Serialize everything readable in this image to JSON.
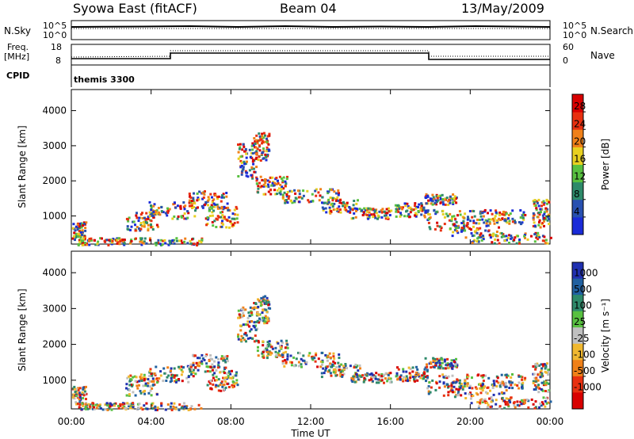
{
  "header": {
    "station": "Syowa East (fitACF)",
    "beam": "Beam 04",
    "date": "13/May/2009"
  },
  "top_panels": {
    "nsky_label": "N.Sky",
    "nsky_ticks": [
      "10^5",
      "10^0"
    ],
    "nsearch_label": "N.Search",
    "nsearch_ticks": [
      "10^5",
      "10^0"
    ],
    "freq_label_1": "Freq.",
    "freq_label_2": "[MHz]",
    "freq_ticks": [
      "18",
      "8"
    ],
    "nave_label": "Nave",
    "nave_ticks": [
      "60",
      "0"
    ],
    "cpid_label": "CPID",
    "cpid_value": "themis 3300"
  },
  "chart_data": [
    {
      "type": "heatmap",
      "name": "power",
      "ylabel": "Slant Range [km]",
      "yticks": [
        1000,
        2000,
        3000,
        4000
      ],
      "ylim": [
        200,
        4600
      ],
      "colorbar_label": "Power [dB]",
      "colorbar_ticks": [
        "4",
        "8",
        "12",
        "16",
        "20",
        "24",
        "28"
      ],
      "colors": [
        "#1a2bd8",
        "#2850b0",
        "#2e8a6a",
        "#58c040",
        "#e8d020",
        "#f08018",
        "#e83010",
        "#d80000"
      ]
    },
    {
      "type": "heatmap",
      "name": "velocity",
      "ylabel": "Slant Range [km]",
      "yticks": [
        1000,
        2000,
        3000,
        4000
      ],
      "ylim": [
        200,
        4600
      ],
      "colorbar_label": "Velocity [m s⁻¹]",
      "colorbar_ticks": [
        "1000",
        "500",
        "100",
        "25",
        "-25",
        "-100",
        "-500",
        "-1000"
      ],
      "colors": [
        "#2030b0",
        "#2060a0",
        "#2e8a6a",
        "#58c040",
        "#c0c0c0",
        "#f0b830",
        "#f08018",
        "#e83010",
        "#d80000"
      ]
    }
  ],
  "x_axis": {
    "xlabel": "Time UT",
    "ticks": [
      "00:00",
      "04:00",
      "08:00",
      "12:00",
      "16:00",
      "20:00",
      "00:00"
    ]
  }
}
